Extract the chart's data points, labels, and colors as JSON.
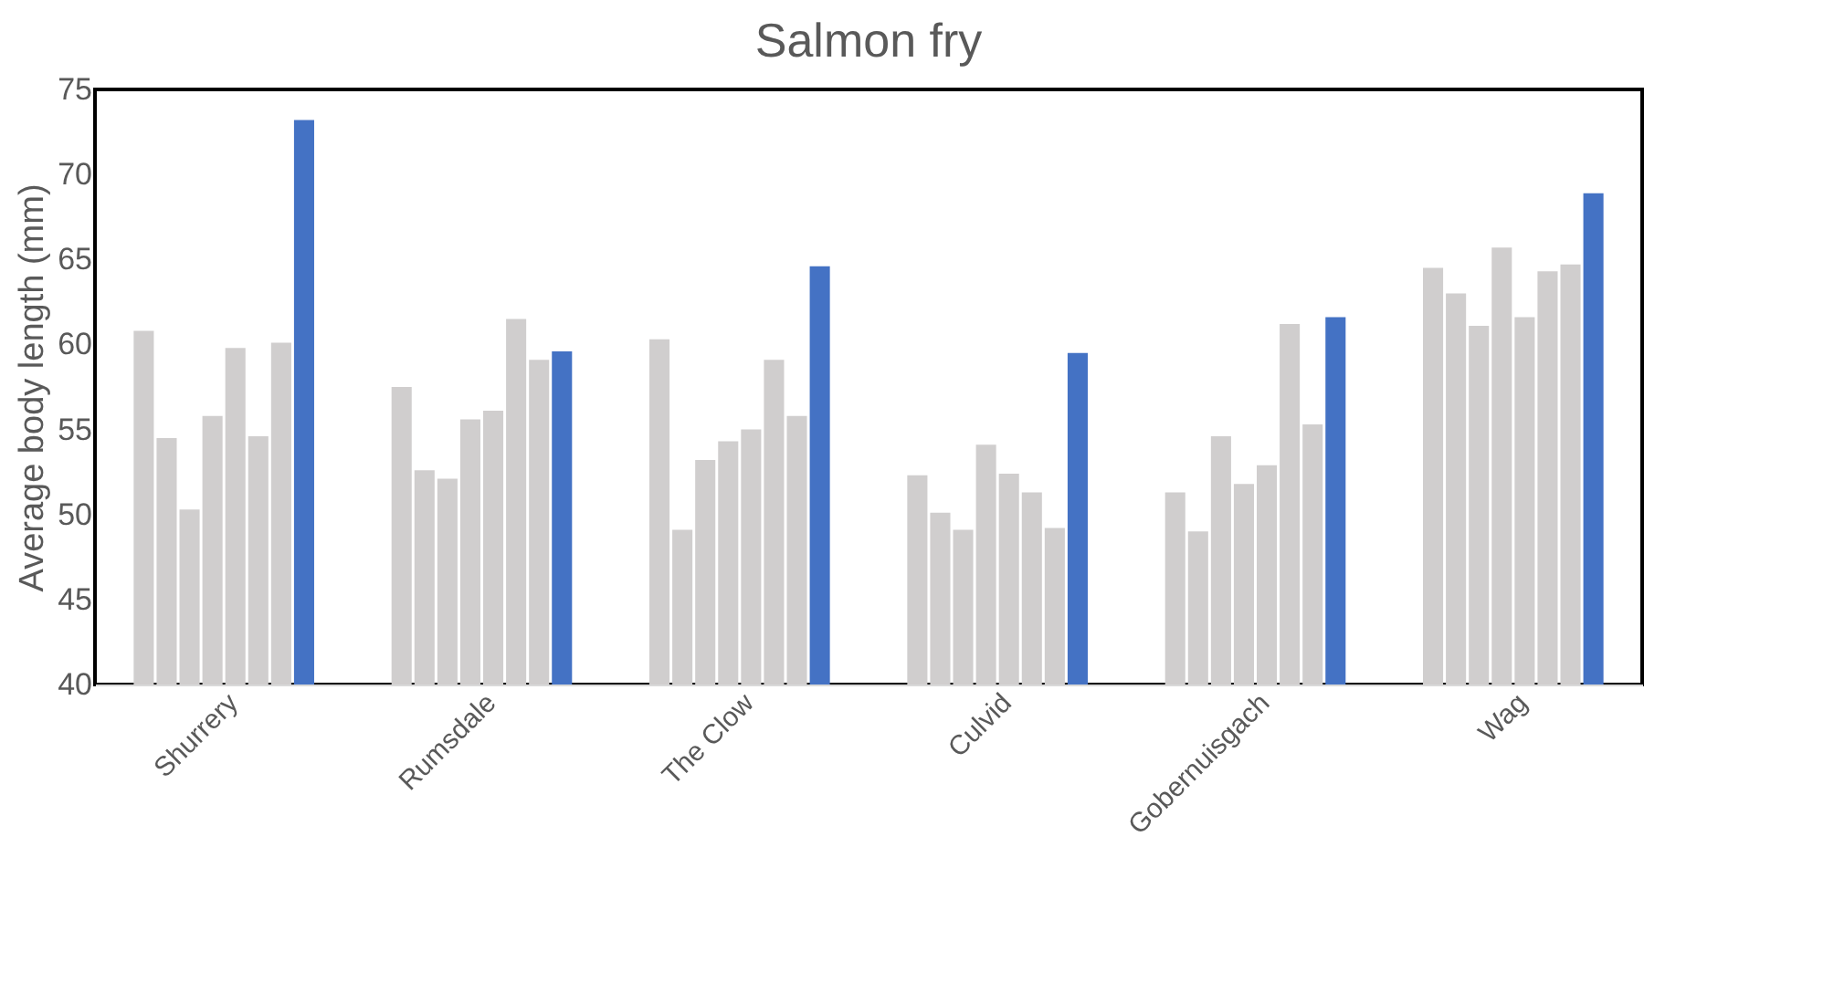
{
  "chart_data": {
    "type": "bar",
    "title": "Salmon fry",
    "ylabel": "Average body length (mm)",
    "categories": [
      "Shurrery",
      "Rumsdale",
      "The Clow",
      "Culvid",
      "Gobernuisgach",
      "Wag"
    ],
    "series": [
      {
        "color": "#d0cece",
        "values": [
          60.8,
          57.5,
          60.3,
          52.3,
          51.3,
          64.5
        ]
      },
      {
        "color": "#d0cece",
        "values": [
          54.5,
          52.6,
          49.1,
          50.1,
          49.0,
          63.0
        ]
      },
      {
        "color": "#d0cece",
        "values": [
          50.3,
          52.1,
          53.2,
          49.1,
          54.6,
          61.1
        ]
      },
      {
        "color": "#d0cece",
        "values": [
          55.8,
          55.6,
          54.3,
          54.1,
          51.8,
          65.7
        ]
      },
      {
        "color": "#d0cece",
        "values": [
          59.8,
          56.1,
          55.0,
          52.4,
          52.9,
          61.6
        ]
      },
      {
        "color": "#d0cece",
        "values": [
          54.6,
          61.5,
          59.1,
          51.3,
          61.2,
          64.3
        ]
      },
      {
        "color": "#d0cece",
        "values": [
          60.1,
          59.1,
          55.8,
          49.2,
          55.3,
          64.7
        ]
      },
      {
        "color": "#4472c4",
        "values": [
          73.2,
          59.6,
          64.6,
          59.5,
          61.6,
          68.9
        ]
      }
    ],
    "ylim": [
      40,
      75
    ],
    "yticks": [
      40,
      45,
      50,
      55,
      60,
      65,
      70,
      75
    ],
    "grid": false,
    "legend": false
  }
}
